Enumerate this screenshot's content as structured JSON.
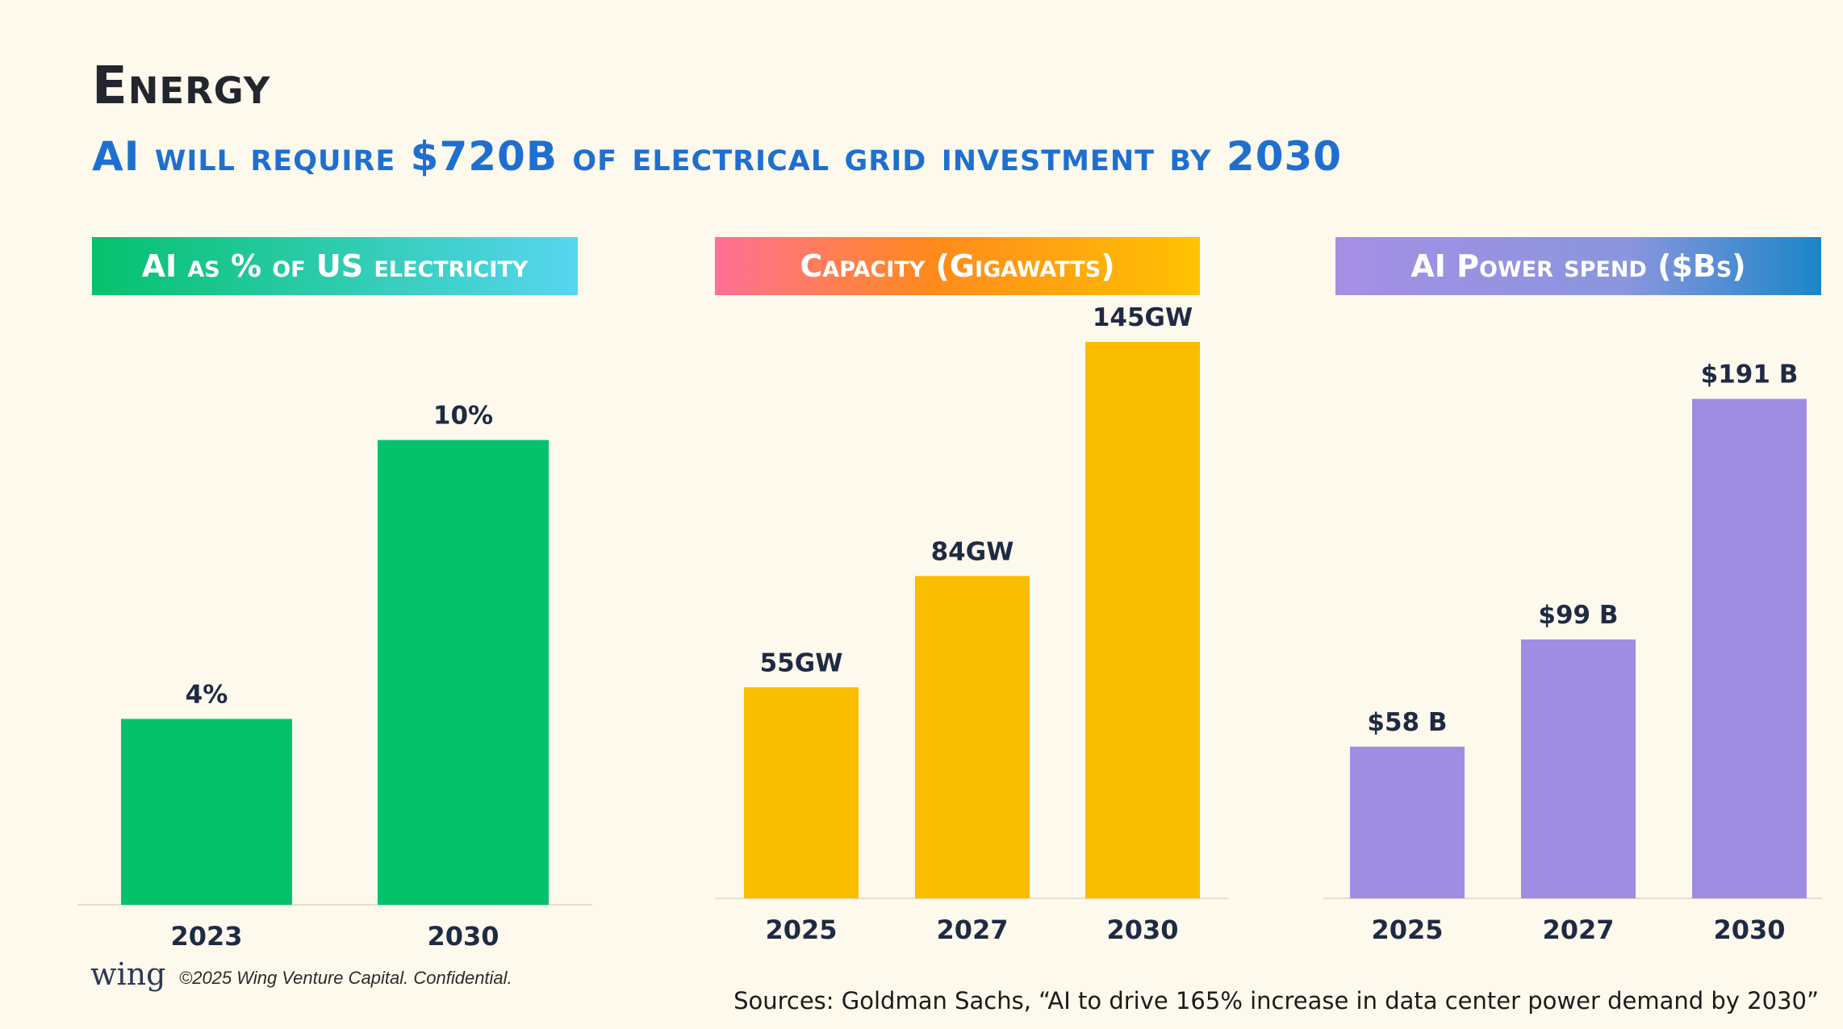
{
  "page": {
    "title": "Energy",
    "subtitle": "AI will require $720B of electrical grid investment by 2030",
    "logo": "wing",
    "copyright": "©2025 Wing Venture Capital. Confidential.",
    "sources": "Sources: Goldman Sachs, “AI to drive 165% increase in data center power demand by 2030”"
  },
  "chart_data": [
    {
      "type": "bar",
      "title": "AI as % of US electricity",
      "categories": [
        "2023",
        "2030"
      ],
      "values": [
        4,
        10
      ],
      "value_labels": [
        "4%",
        "10%"
      ],
      "ylim": [
        0,
        11
      ],
      "bar_color": "#05c16c",
      "header_colors": [
        "#05c16c",
        "#57d6f0"
      ]
    },
    {
      "type": "bar",
      "title": "Capacity (Gigawatts)",
      "categories": [
        "2025",
        "2027",
        "2030"
      ],
      "values": [
        55,
        84,
        145
      ],
      "value_labels": [
        "55GW",
        "84GW",
        "145GW"
      ],
      "ylim": [
        0,
        145
      ],
      "bar_color": "#fbbd00",
      "header_colors": [
        "#ff6f95",
        "#ff8a1c",
        "#ffc300"
      ]
    },
    {
      "type": "bar",
      "title": "AI Power spend ($Bs)",
      "categories": [
        "2025",
        "2027",
        "2030"
      ],
      "values": [
        58,
        99,
        191
      ],
      "value_labels": [
        "$58 B",
        "$99 B",
        "$191 B"
      ],
      "ylim": [
        0,
        210
      ],
      "bar_color": "#9f8de4",
      "header_colors": [
        "#a58fe4",
        "#8a96de",
        "#1a86c8"
      ]
    }
  ]
}
